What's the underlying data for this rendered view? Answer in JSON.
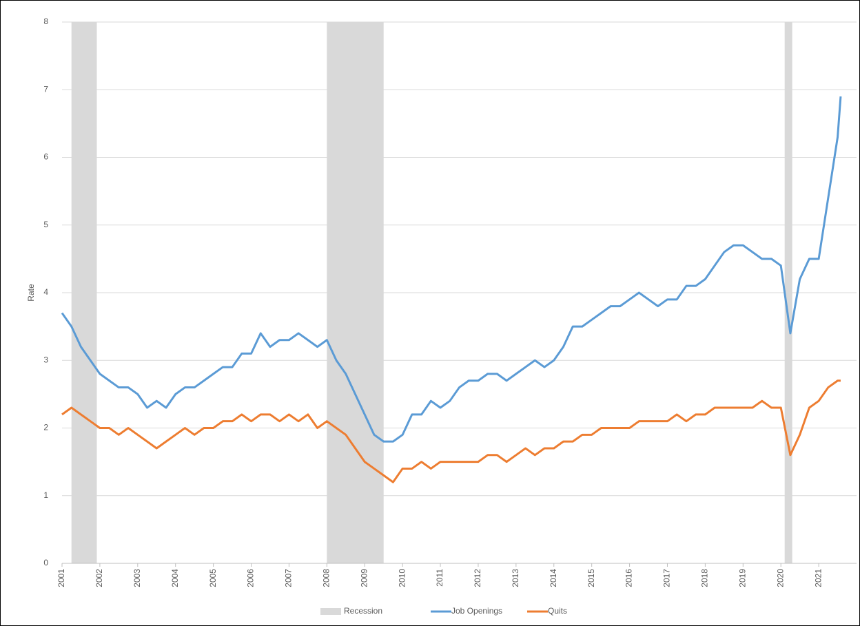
{
  "chart_data": {
    "type": "line",
    "y_label": "Rate",
    "x": [
      2001.0,
      2001.25,
      2001.5,
      2001.75,
      2002.0,
      2002.25,
      2002.5,
      2002.75,
      2003.0,
      2003.25,
      2003.5,
      2003.75,
      2004.0,
      2004.25,
      2004.5,
      2004.75,
      2005.0,
      2005.25,
      2005.5,
      2005.75,
      2006.0,
      2006.25,
      2006.5,
      2006.75,
      2007.0,
      2007.25,
      2007.5,
      2007.75,
      2008.0,
      2008.25,
      2008.5,
      2008.75,
      2009.0,
      2009.25,
      2009.5,
      2009.75,
      2010.0,
      2010.25,
      2010.5,
      2010.75,
      2011.0,
      2011.25,
      2011.5,
      2011.75,
      2012.0,
      2012.25,
      2012.5,
      2012.75,
      2013.0,
      2013.25,
      2013.5,
      2013.75,
      2014.0,
      2014.25,
      2014.5,
      2014.75,
      2015.0,
      2015.25,
      2015.5,
      2015.75,
      2016.0,
      2016.25,
      2016.5,
      2016.75,
      2017.0,
      2017.25,
      2017.5,
      2017.75,
      2018.0,
      2018.25,
      2018.5,
      2018.75,
      2019.0,
      2019.25,
      2019.5,
      2019.75,
      2020.0,
      2020.25,
      2020.5,
      2020.75,
      2021.0,
      2021.25,
      2021.5,
      2021.58
    ],
    "series": [
      {
        "name": "Job Openings",
        "color": "#5b9bd5",
        "values": [
          3.7,
          3.5,
          3.2,
          3.0,
          2.8,
          2.7,
          2.6,
          2.6,
          2.5,
          2.3,
          2.4,
          2.3,
          2.5,
          2.6,
          2.6,
          2.7,
          2.8,
          2.9,
          2.9,
          3.1,
          3.1,
          3.4,
          3.2,
          3.3,
          3.3,
          3.4,
          3.3,
          3.2,
          3.3,
          3.0,
          2.8,
          2.5,
          2.2,
          1.9,
          1.8,
          1.8,
          1.9,
          2.2,
          2.2,
          2.4,
          2.3,
          2.4,
          2.6,
          2.7,
          2.7,
          2.8,
          2.8,
          2.7,
          2.8,
          2.9,
          3.0,
          2.9,
          3.0,
          3.2,
          3.5,
          3.5,
          3.6,
          3.7,
          3.8,
          3.8,
          3.9,
          4.0,
          3.9,
          3.8,
          3.9,
          3.9,
          4.1,
          4.1,
          4.2,
          4.4,
          4.6,
          4.7,
          4.7,
          4.6,
          4.5,
          4.5,
          4.4,
          3.4,
          4.2,
          4.5,
          4.5,
          5.4,
          6.3,
          6.9
        ]
      },
      {
        "name": "Quits",
        "color": "#ed7d31",
        "values": [
          2.2,
          2.3,
          2.2,
          2.1,
          2.0,
          2.0,
          1.9,
          2.0,
          1.9,
          1.8,
          1.7,
          1.8,
          1.9,
          2.0,
          1.9,
          2.0,
          2.0,
          2.1,
          2.1,
          2.2,
          2.1,
          2.2,
          2.2,
          2.1,
          2.2,
          2.1,
          2.2,
          2.0,
          2.1,
          2.0,
          1.9,
          1.7,
          1.5,
          1.4,
          1.3,
          1.2,
          1.4,
          1.4,
          1.5,
          1.4,
          1.5,
          1.5,
          1.5,
          1.5,
          1.5,
          1.6,
          1.6,
          1.5,
          1.6,
          1.7,
          1.6,
          1.7,
          1.7,
          1.8,
          1.8,
          1.9,
          1.9,
          2.0,
          2.0,
          2.0,
          2.0,
          2.1,
          2.1,
          2.1,
          2.1,
          2.2,
          2.1,
          2.2,
          2.2,
          2.3,
          2.3,
          2.3,
          2.3,
          2.3,
          2.4,
          2.3,
          2.3,
          1.6,
          1.9,
          2.3,
          2.4,
          2.6,
          2.7,
          2.7
        ]
      }
    ],
    "recessions": {
      "name": "Recession",
      "color": "#d9d9d9",
      "ranges": [
        [
          2001.25,
          2001.92
        ],
        [
          2008.0,
          2009.5
        ],
        [
          2020.1,
          2020.3
        ]
      ]
    },
    "xlim": [
      2001,
      2022
    ],
    "xticks": [
      2001,
      2002,
      2003,
      2004,
      2005,
      2006,
      2007,
      2008,
      2009,
      2010,
      2011,
      2012,
      2013,
      2014,
      2015,
      2016,
      2017,
      2018,
      2019,
      2020,
      2021
    ],
    "ylim": [
      0,
      8
    ],
    "yticks": [
      0,
      1,
      2,
      3,
      4,
      5,
      6,
      7,
      8
    ],
    "grid": true,
    "legend": "bottom"
  }
}
